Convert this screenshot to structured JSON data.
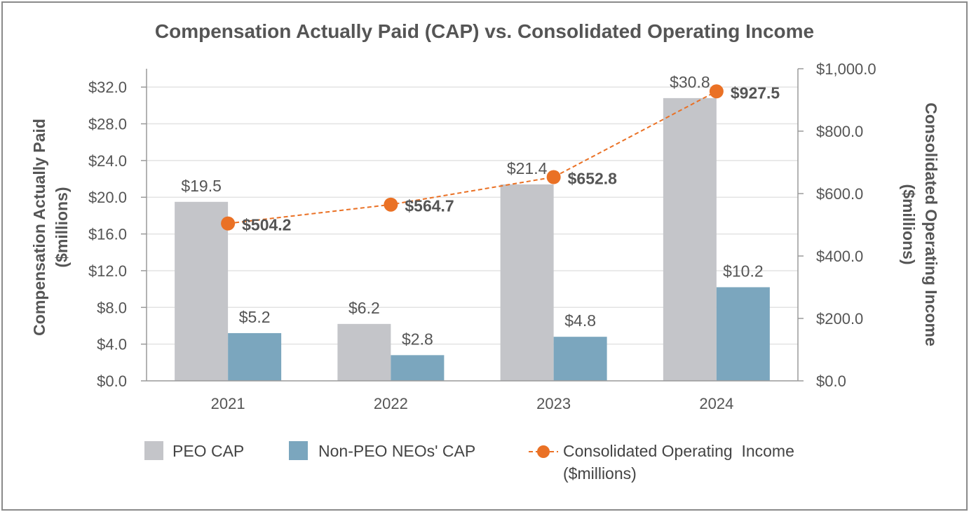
{
  "chart_data": {
    "type": "bar",
    "title": "Compensation Actually Paid (CAP) vs. Consolidated Operating Income",
    "categories": [
      "2021",
      "2022",
      "2023",
      "2024"
    ],
    "series": [
      {
        "name": "PEO CAP",
        "type": "bar",
        "axis": "left",
        "values": [
          19.5,
          6.2,
          21.4,
          30.8
        ],
        "labels": [
          "$19.5",
          "$6.2",
          "$21.4",
          "$30.8"
        ],
        "color": "#c4c5c9"
      },
      {
        "name": "Non-PEO NEOs' CAP",
        "type": "bar",
        "axis": "left",
        "values": [
          5.2,
          2.8,
          4.8,
          10.2
        ],
        "labels": [
          "$5.2",
          "$2.8",
          "$4.8",
          "$10.2"
        ],
        "color": "#7ba6be"
      },
      {
        "name": "Consolidated Operating Income ($millions)",
        "legend_lines": [
          "Consolidated Operating  Income",
          "($millions)"
        ],
        "type": "line",
        "axis": "right",
        "values": [
          504.2,
          564.7,
          652.8,
          927.5
        ],
        "labels": [
          "$504.2",
          "$564.7",
          "$652.8",
          "$927.5"
        ],
        "color": "#ea7125",
        "line_style": "dashed"
      }
    ],
    "ylabel_left": [
      "Compensation Actually Paid",
      "($millions)"
    ],
    "ylabel_right": [
      "Consolidated Operating Income",
      "($millions)"
    ],
    "ylim_left": [
      0,
      34
    ],
    "ylim_right": [
      0,
      1000
    ],
    "yticks_left": [
      "$0.0",
      "$4.0",
      "$8.0",
      "$12.0",
      "$16.0",
      "$20.0",
      "$24.0",
      "$28.0",
      "$32.0"
    ],
    "yticks_left_values": [
      0,
      4,
      8,
      12,
      16,
      20,
      24,
      28,
      32
    ],
    "yticks_right": [
      "$0.0",
      "$200.0",
      "$400.0",
      "$600.0",
      "$800.0",
      "$1,000.0"
    ],
    "yticks_right_values": [
      0,
      200,
      400,
      600,
      800,
      1000
    ],
    "grid": true,
    "legend_position": "bottom"
  }
}
